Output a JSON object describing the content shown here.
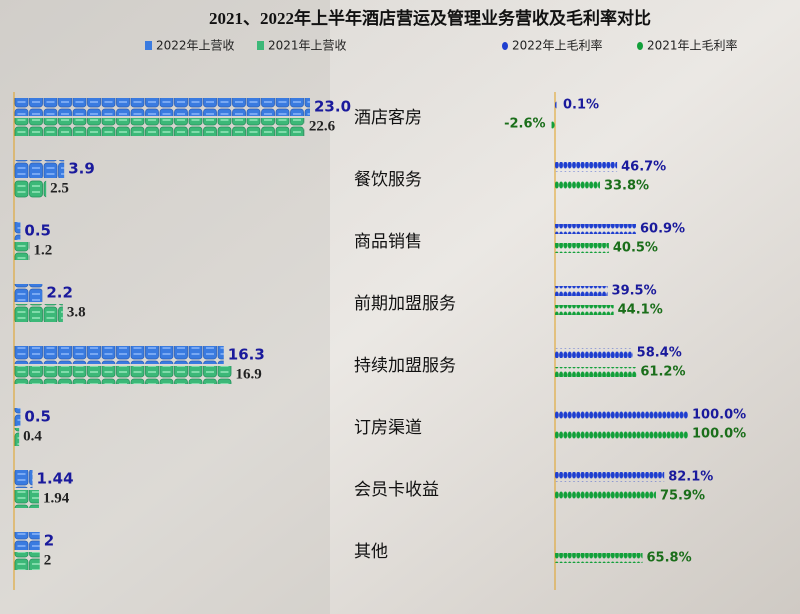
{
  "chart_data": [
    {
      "type": "pictogram-bar",
      "title": "2021、2022年上半年酒店营运及管理业务营收及毛利率对比",
      "categories": [
        "酒店客房",
        "餐饮服务",
        "商品销售",
        "前期加盟服务",
        "持续加盟服务",
        "订房渠道",
        "会员卡收益",
        "其他"
      ],
      "xlim": [
        0,
        23
      ],
      "series": [
        {
          "name": "2022年上营收",
          "color": "#3a7be0",
          "values": [
            23.0,
            3.9,
            0.5,
            2.2,
            16.3,
            0.5,
            1.44,
            2
          ],
          "value_labels": [
            "23.0",
            "3.9",
            "0.5",
            "2.2",
            "16.3",
            "0.5",
            "1.44",
            "2"
          ]
        },
        {
          "name": "2021年上营收",
          "color": "#3cb878",
          "values": [
            22.6,
            2.5,
            1.2,
            3.8,
            16.9,
            0.4,
            1.94,
            2
          ],
          "value_labels": [
            "22.6",
            "2.5",
            "1.2",
            "3.8",
            "16.9",
            "0.4",
            "1.94",
            "2"
          ]
        }
      ]
    },
    {
      "type": "dot-bar",
      "xlim": [
        0,
        100
      ],
      "series": [
        {
          "name": "2022年上毛利率",
          "color": "#1f3fd0",
          "values": [
            0.1,
            46.7,
            60.9,
            39.5,
            58.4,
            100.0,
            82.1,
            null
          ],
          "value_labels": [
            "0.1%",
            "46.7%",
            "60.9%",
            "39.5%",
            "58.4%",
            "100.0%",
            "82.1%",
            null
          ]
        },
        {
          "name": "2021年上毛利率",
          "color": "#12a03a",
          "values": [
            -2.6,
            33.8,
            40.5,
            44.1,
            61.2,
            100.0,
            75.9,
            65.8
          ],
          "value_labels": [
            "-2.6%",
            "33.8%",
            "40.5%",
            "44.1%",
            "61.2%",
            "100.0%",
            "75.9%",
            "65.8%"
          ]
        }
      ]
    }
  ]
}
